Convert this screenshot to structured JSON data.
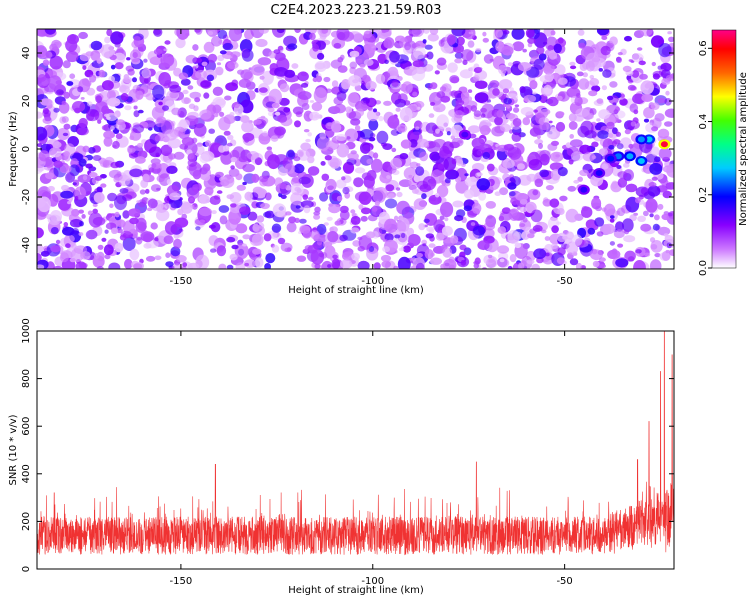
{
  "title": "C2E4.2023.223.21.59.R03",
  "chart_data": [
    {
      "type": "heatmap",
      "name": "spectrogram",
      "xlabel": "Height of straight line (km)",
      "ylabel": "Frequency (Hz)",
      "xlim": [
        -187.5,
        -21.5
      ],
      "ylim": [
        -50,
        50
      ],
      "x_ticks": [
        -150,
        -100,
        -50
      ],
      "y_ticks": [
        -40,
        -20,
        0,
        20,
        40
      ],
      "colorbar": {
        "label": "Normalized spectral amplitude",
        "range": [
          0.0,
          0.65
        ],
        "ticks": [
          0.0,
          0.2,
          0.4,
          0.6
        ],
        "colors": [
          "#ffffff",
          "#cc77ff",
          "#8800ff",
          "#0000ff",
          "#00ccff",
          "#00ff88",
          "#44ff00",
          "#ffff00",
          "#ff6600",
          "#ff0000",
          "#ff0088"
        ]
      },
      "background_level": 0.15,
      "hot_spots": [
        {
          "x": -24,
          "y": 2,
          "amplitude": 0.62
        },
        {
          "x": -28,
          "y": 4,
          "amplitude": 0.28
        },
        {
          "x": -30,
          "y": -5,
          "amplitude": 0.27
        },
        {
          "x": -33,
          "y": -3,
          "amplitude": 0.26
        },
        {
          "x": -30,
          "y": 4,
          "amplitude": 0.25
        },
        {
          "x": -36,
          "y": -3,
          "amplitude": 0.24
        },
        {
          "x": -38,
          "y": -4,
          "amplitude": 0.2
        },
        {
          "x": -41,
          "y": -10,
          "amplitude": 0.18
        },
        {
          "x": -45,
          "y": -17,
          "amplitude": 0.17
        },
        {
          "x": -76,
          "y": 6,
          "amplitude": 0.15
        }
      ]
    },
    {
      "type": "line",
      "name": "snr",
      "xlabel": "Height of straight line (km)",
      "ylabel": "SNR (10 * v/v)",
      "xlim": [
        -187.5,
        -21.5
      ],
      "ylim": [
        0,
        1000
      ],
      "x_ticks": [
        -150,
        -100,
        -50
      ],
      "y_ticks": [
        0,
        200,
        400,
        600,
        800,
        1000
      ],
      "color": "#f03232",
      "baseline_mean": 140,
      "noise_band": [
        40,
        260
      ],
      "spikes": [
        {
          "x": -141,
          "y": 440
        },
        {
          "x": -183,
          "y": 320
        },
        {
          "x": -73,
          "y": 450
        },
        {
          "x": -31,
          "y": 460
        },
        {
          "x": -28,
          "y": 620
        },
        {
          "x": -25,
          "y": 830
        },
        {
          "x": -24,
          "y": 1000
        },
        {
          "x": -22,
          "y": 900
        }
      ]
    }
  ]
}
